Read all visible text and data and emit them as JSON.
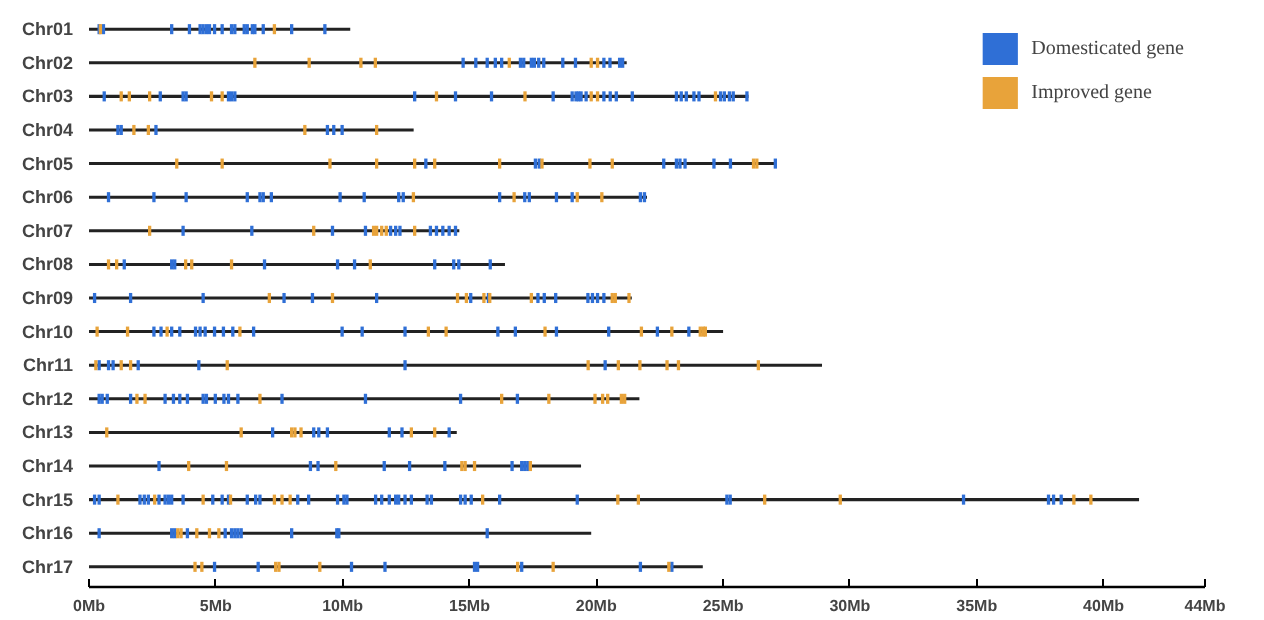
{
  "chart_data": {
    "type": "bar",
    "orientation": "horizontal",
    "legend": "top right",
    "categories": [
      "Chr01",
      "Chr02",
      "Chr03",
      "Chr04",
      "Chr05",
      "Chr06",
      "Chr07",
      "Chr08",
      "Chr09",
      "Chr10",
      "Chr11",
      "Chr12",
      "Chr13",
      "Chr14",
      "Chr15",
      "Chr16",
      "Chr17"
    ],
    "xlim": [
      0,
      44
    ],
    "xticks": [
      {
        "value": 0,
        "label": "0Mb"
      },
      {
        "value": 5,
        "label": "5Mb"
      },
      {
        "value": 10,
        "label": "10Mb"
      },
      {
        "value": 15,
        "label": "15Mb"
      },
      {
        "value": 20,
        "label": "20Mb"
      },
      {
        "value": 25,
        "label": "25Mb"
      },
      {
        "value": 30,
        "label": "30Mb"
      },
      {
        "value": 35,
        "label": "35Mb"
      },
      {
        "value": 40,
        "label": "40Mb"
      },
      {
        "value": 44,
        "label": "44Mb"
      }
    ],
    "series": [
      {
        "type": "bar",
        "color": "#222222",
        "values": [
          10.3,
          21.2,
          26.0,
          12.8,
          27.1,
          22.0,
          14.6,
          16.4,
          21.4,
          25.0,
          28.9,
          21.7,
          14.5,
          19.4,
          41.4,
          19.8,
          24.2
        ]
      },
      {
        "type": "scatter",
        "name": "Domesticated gene",
        "color": "#2f6fd6",
        "x": [
          "Chr01",
          "Chr01",
          "Chr01",
          "Chr01",
          "Chr01",
          "Chr01",
          "Chr01",
          "Chr01",
          "Chr01",
          "Chr01",
          "Chr01",
          "Chr01",
          "Chr01",
          "Chr01",
          "Chr01",
          "Chr01",
          "Chr01",
          "Chr01",
          "Chr01",
          "Chr02",
          "Chr02",
          "Chr02",
          "Chr02",
          "Chr02",
          "Chr02",
          "Chr02",
          "Chr02",
          "Chr02",
          "Chr02",
          "Chr02",
          "Chr02",
          "Chr02",
          "Chr02",
          "Chr02",
          "Chr02",
          "Chr02",
          "Chr03",
          "Chr03",
          "Chr03",
          "Chr03",
          "Chr03",
          "Chr03",
          "Chr03",
          "Chr03",
          "Chr03",
          "Chr03",
          "Chr03",
          "Chr03",
          "Chr03",
          "Chr03",
          "Chr03",
          "Chr03",
          "Chr03",
          "Chr03",
          "Chr03",
          "Chr03",
          "Chr03",
          "Chr03",
          "Chr03",
          "Chr03",
          "Chr03",
          "Chr03",
          "Chr03",
          "Chr03",
          "Chr03",
          "Chr03",
          "Chr04",
          "Chr04",
          "Chr04",
          "Chr04",
          "Chr04",
          "Chr04",
          "Chr05",
          "Chr05",
          "Chr05",
          "Chr05",
          "Chr05",
          "Chr05",
          "Chr05",
          "Chr05",
          "Chr05",
          "Chr05",
          "Chr06",
          "Chr06",
          "Chr06",
          "Chr06",
          "Chr06",
          "Chr06",
          "Chr06",
          "Chr06",
          "Chr06",
          "Chr06",
          "Chr06",
          "Chr06",
          "Chr06",
          "Chr06",
          "Chr06",
          "Chr06",
          "Chr06",
          "Chr06",
          "Chr07",
          "Chr07",
          "Chr07",
          "Chr07",
          "Chr07",
          "Chr07",
          "Chr07",
          "Chr07",
          "Chr07",
          "Chr07",
          "Chr07",
          "Chr07",
          "Chr08",
          "Chr08",
          "Chr08",
          "Chr08",
          "Chr08",
          "Chr08",
          "Chr08",
          "Chr08",
          "Chr08",
          "Chr08",
          "Chr09",
          "Chr09",
          "Chr09",
          "Chr09",
          "Chr09",
          "Chr09",
          "Chr09",
          "Chr09",
          "Chr09",
          "Chr09",
          "Chr09",
          "Chr09",
          "Chr09",
          "Chr09",
          "Chr09",
          "Chr10",
          "Chr10",
          "Chr10",
          "Chr10",
          "Chr10",
          "Chr10",
          "Chr10",
          "Chr10",
          "Chr10",
          "Chr10",
          "Chr10",
          "Chr10",
          "Chr10",
          "Chr10",
          "Chr10",
          "Chr10",
          "Chr10",
          "Chr10",
          "Chr10",
          "Chr10",
          "Chr11",
          "Chr11",
          "Chr11",
          "Chr11",
          "Chr11",
          "Chr11",
          "Chr11",
          "Chr12",
          "Chr12",
          "Chr12",
          "Chr12",
          "Chr12",
          "Chr12",
          "Chr12",
          "Chr12",
          "Chr12",
          "Chr12",
          "Chr12",
          "Chr12",
          "Chr12",
          "Chr12",
          "Chr12",
          "Chr12",
          "Chr12",
          "Chr12",
          "Chr13",
          "Chr13",
          "Chr13",
          "Chr13",
          "Chr13",
          "Chr13",
          "Chr13",
          "Chr14",
          "Chr14",
          "Chr14",
          "Chr14",
          "Chr14",
          "Chr14",
          "Chr14",
          "Chr14",
          "Chr14",
          "Chr14",
          "Chr15",
          "Chr15",
          "Chr15",
          "Chr15",
          "Chr15",
          "Chr15",
          "Chr15",
          "Chr15",
          "Chr15",
          "Chr15",
          "Chr15",
          "Chr15",
          "Chr15",
          "Chr15",
          "Chr15",
          "Chr15",
          "Chr15",
          "Chr15",
          "Chr15",
          "Chr15",
          "Chr15",
          "Chr15",
          "Chr15",
          "Chr15",
          "Chr15",
          "Chr15",
          "Chr15",
          "Chr15",
          "Chr15",
          "Chr15",
          "Chr15",
          "Chr15",
          "Chr15",
          "Chr15",
          "Chr15",
          "Chr15",
          "Chr15",
          "Chr15",
          "Chr15",
          "Chr15",
          "Chr15",
          "Chr16",
          "Chr16",
          "Chr16",
          "Chr16",
          "Chr16",
          "Chr16",
          "Chr16",
          "Chr16",
          "Chr16",
          "Chr16",
          "Chr16",
          "Chr16",
          "Chr16",
          "Chr17",
          "Chr17",
          "Chr17",
          "Chr17",
          "Chr17",
          "Chr17",
          "Chr17",
          "Chr17",
          "Chr17"
        ],
        "values": [
          0.4,
          0.57,
          3.26,
          3.96,
          4.38,
          4.5,
          4.63,
          4.75,
          4.95,
          5.25,
          5.62,
          5.75,
          6.12,
          6.24,
          6.44,
          6.54,
          6.87,
          7.99,
          9.3,
          14.75,
          15.25,
          15.7,
          16.02,
          16.27,
          17.01,
          17.14,
          17.44,
          17.56,
          17.73,
          17.93,
          18.68,
          19.18,
          20.3,
          20.54,
          20.92,
          21.04,
          0.6,
          2.81,
          3.71,
          3.83,
          5.5,
          5.62,
          5.75,
          12.84,
          14.45,
          15.87,
          18.3,
          19.05,
          19.2,
          19.3,
          19.4,
          19.6,
          20.3,
          20.55,
          20.79,
          21.42,
          23.16,
          23.35,
          23.55,
          23.85,
          24.05,
          24.9,
          25.05,
          25.25,
          25.4,
          25.94,
          1.14,
          1.27,
          2.64,
          9.4,
          9.65,
          9.98,
          13.28,
          17.6,
          17.75,
          22.66,
          23.16,
          23.3,
          23.5,
          24.64,
          25.29,
          27.06,
          0.77,
          2.56,
          3.83,
          6.24,
          6.74,
          6.87,
          7.19,
          9.9,
          10.85,
          12.21,
          12.39,
          16.19,
          17.18,
          17.36,
          18.43,
          19.05,
          21.74,
          21.9,
          3.71,
          6.42,
          9.6,
          10.9,
          11.89,
          12.09,
          12.26,
          13.46,
          13.7,
          13.95,
          14.2,
          14.45,
          1.39,
          3.26,
          3.38,
          6.92,
          9.8,
          10.47,
          13.63,
          14.38,
          14.58,
          15.82,
          0.22,
          1.64,
          4.5,
          7.69,
          8.81,
          11.34,
          15.05,
          15.75,
          17.7,
          17.95,
          18.4,
          19.67,
          19.85,
          20.05,
          20.3,
          2.56,
          2.84,
          3.26,
          3.58,
          4.2,
          4.38,
          4.58,
          4.95,
          5.3,
          5.67,
          6.49,
          9.98,
          10.77,
          12.46,
          16.12,
          16.81,
          18.43,
          20.49,
          22.41,
          23.65,
          0.4,
          0.77,
          0.95,
          1.94,
          4.33,
          12.46,
          20.35,
          0.4,
          0.52,
          0.72,
          1.64,
          3.0,
          3.33,
          3.58,
          3.88,
          4.5,
          4.63,
          4.98,
          5.32,
          5.5,
          5.87,
          7.61,
          10.9,
          14.65,
          16.89,
          7.24,
          8.86,
          9.06,
          9.4,
          11.84,
          12.34,
          14.2,
          2.76,
          8.73,
          9.03,
          11.64,
          12.64,
          14.03,
          16.68,
          17.06,
          17.18,
          17.3,
          0.22,
          0.4,
          2.01,
          2.18,
          2.34,
          2.76,
          3.0,
          3.13,
          3.26,
          3.71,
          4.88,
          5.25,
          5.5,
          6.24,
          6.57,
          6.74,
          8.23,
          8.66,
          9.8,
          10.05,
          10.17,
          11.3,
          11.54,
          11.84,
          12.09,
          12.21,
          12.46,
          12.71,
          13.33,
          13.5,
          14.65,
          14.83,
          15.07,
          16.19,
          19.25,
          25.15,
          25.28,
          34.48,
          37.83,
          38.03,
          38.33,
          0.4,
          3.26,
          3.38,
          3.88,
          5.37,
          5.62,
          5.75,
          5.87,
          6.0,
          7.99,
          9.77,
          9.85,
          15.7,
          4.95,
          6.67,
          10.35,
          11.67,
          15.2,
          15.32,
          17.06,
          21.74,
          22.98
        ]
      },
      {
        "type": "scatter",
        "name": "Improved gene",
        "color": "#e8a33a",
        "x": [
          "Chr01",
          "Chr01",
          "Chr02",
          "Chr02",
          "Chr02",
          "Chr02",
          "Chr02",
          "Chr02",
          "Chr02",
          "Chr03",
          "Chr03",
          "Chr03",
          "Chr03",
          "Chr03",
          "Chr03",
          "Chr03",
          "Chr03",
          "Chr03",
          "Chr03",
          "Chr04",
          "Chr04",
          "Chr04",
          "Chr04",
          "Chr05",
          "Chr05",
          "Chr05",
          "Chr05",
          "Chr05",
          "Chr05",
          "Chr05",
          "Chr05",
          "Chr05",
          "Chr05",
          "Chr05",
          "Chr05",
          "Chr06",
          "Chr06",
          "Chr06",
          "Chr06",
          "Chr07",
          "Chr07",
          "Chr07",
          "Chr07",
          "Chr07",
          "Chr07",
          "Chr07",
          "Chr08",
          "Chr08",
          "Chr08",
          "Chr08",
          "Chr08",
          "Chr08",
          "Chr09",
          "Chr09",
          "Chr09",
          "Chr09",
          "Chr09",
          "Chr09",
          "Chr09",
          "Chr09",
          "Chr09",
          "Chr09",
          "Chr10",
          "Chr10",
          "Chr10",
          "Chr10",
          "Chr10",
          "Chr10",
          "Chr10",
          "Chr10",
          "Chr10",
          "Chr10",
          "Chr10",
          "Chr10",
          "Chr11",
          "Chr11",
          "Chr11",
          "Chr11",
          "Chr11",
          "Chr11",
          "Chr11",
          "Chr11",
          "Chr11",
          "Chr11",
          "Chr12",
          "Chr12",
          "Chr12",
          "Chr12",
          "Chr12",
          "Chr12",
          "Chr12",
          "Chr12",
          "Chr12",
          "Chr12",
          "Chr13",
          "Chr13",
          "Chr13",
          "Chr13",
          "Chr13",
          "Chr13",
          "Chr13",
          "Chr14",
          "Chr14",
          "Chr14",
          "Chr14",
          "Chr14",
          "Chr14",
          "Chr14",
          "Chr15",
          "Chr15",
          "Chr15",
          "Chr15",
          "Chr15",
          "Chr15",
          "Chr15",
          "Chr15",
          "Chr15",
          "Chr15",
          "Chr15",
          "Chr15",
          "Chr15",
          "Chr15",
          "Chr16",
          "Chr16",
          "Chr16",
          "Chr16",
          "Chr16",
          "Chr17",
          "Chr17",
          "Chr17",
          "Chr17",
          "Chr17",
          "Chr17",
          "Chr17",
          "Chr17"
        ],
        "values": [
          0.45,
          7.31,
          6.54,
          8.68,
          10.72,
          11.29,
          16.57,
          19.8,
          20.05,
          1.27,
          1.59,
          2.39,
          4.83,
          5.25,
          13.7,
          17.19,
          19.8,
          20.05,
          24.7,
          1.77,
          2.34,
          8.51,
          11.34,
          3.46,
          5.25,
          9.5,
          11.34,
          12.84,
          13.63,
          16.19,
          17.86,
          19.75,
          20.63,
          26.2,
          26.33,
          12.79,
          16.76,
          19.25,
          20.22,
          2.39,
          8.86,
          11.22,
          11.34,
          11.54,
          11.72,
          12.84,
          0.77,
          1.09,
          3.81,
          4.05,
          5.62,
          11.09,
          7.11,
          9.6,
          14.53,
          14.88,
          15.57,
          15.8,
          17.44,
          20.63,
          20.75,
          21.29,
          0.32,
          1.52,
          3.08,
          5.95,
          13.38,
          14.08,
          17.98,
          21.78,
          22.98,
          24.1,
          24.22,
          24.3,
          0.27,
          1.27,
          1.64,
          5.45,
          19.68,
          20.87,
          21.72,
          22.79,
          23.24,
          26.39,
          1.89,
          2.21,
          6.74,
          16.27,
          18.13,
          19.95,
          20.25,
          20.45,
          20.99,
          21.12,
          0.7,
          6.0,
          7.99,
          8.12,
          8.36,
          12.71,
          13.63,
          3.93,
          5.42,
          9.73,
          14.7,
          14.83,
          15.2,
          17.4,
          1.14,
          2.59,
          4.5,
          5.58,
          7.31,
          7.61,
          7.93,
          15.52,
          20.85,
          21.66,
          26.64,
          29.62,
          38.83,
          39.5,
          3.5,
          3.63,
          4.25,
          4.75,
          5.12,
          4.18,
          4.45,
          7.36,
          7.49,
          9.1,
          16.9,
          18.3,
          22.86
        ]
      }
    ]
  }
}
